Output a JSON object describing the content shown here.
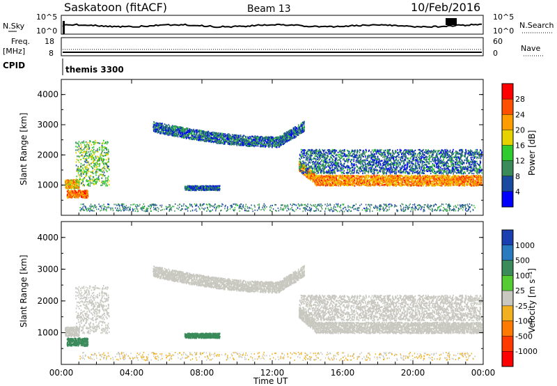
{
  "header": {
    "station": "Saskatoon (fitACF)",
    "beam": "Beam 13",
    "date": "10/Feb/2016"
  },
  "top_panels": {
    "nsky": {
      "label": "N.Sky",
      "ticks": [
        "10^5",
        "10^0"
      ],
      "right_ticks": [
        "10^5",
        "10^0"
      ],
      "right_label": "N.Search"
    },
    "freq": {
      "label_line1": "Freq.",
      "label_line2": "[MHz]",
      "ticks": [
        "18",
        "8"
      ],
      "right_ticks": [
        "60",
        "0"
      ],
      "right_label": "Nave"
    },
    "cpid": {
      "label": "CPID",
      "value": "themis 3300"
    }
  },
  "power_panel": {
    "ylabel": "Slant Range [km]",
    "yticks": [
      "4000",
      "3000",
      "2000",
      "1000"
    ],
    "colorbar_label": "Power [dB]",
    "colorbar_ticks": [
      "28",
      "24",
      "20",
      "16",
      "12",
      "8",
      "4"
    ],
    "colorbar_colors": [
      "#ff0000",
      "#ff5000",
      "#ff9c00",
      "#e6d200",
      "#2ecc2e",
      "#3a8a5a",
      "#1a4aa0",
      "#0000ff"
    ]
  },
  "velocity_panel": {
    "ylabel": "Slant Range [km]",
    "yticks": [
      "4000",
      "3000",
      "2000",
      "1000"
    ],
    "colorbar_label": "Velocity [m s⁻¹]",
    "colorbar_ticks": [
      "1000",
      "500",
      "100",
      "25",
      "-25",
      "-100",
      "-500",
      "-1000"
    ],
    "colorbar_colors": [
      "#1a3fb0",
      "#2a7ac0",
      "#3a8a5a",
      "#55cc33",
      "#c8c8c0",
      "#f0b020",
      "#ff7a00",
      "#ff3a00",
      "#ff0000"
    ]
  },
  "xaxis": {
    "ticks": [
      "00:00",
      "04:00",
      "08:00",
      "12:00",
      "16:00",
      "20:00",
      "00:00"
    ],
    "label": "Time UT"
  },
  "chart_data": {
    "type": "heatmap",
    "title": "Saskatoon (fitACF)",
    "subtitle": "Beam 13",
    "date": "10/Feb/2016",
    "xlabel": "Time UT",
    "ylabel": "Slant Range [km]",
    "x_range_hours": [
      0,
      24
    ],
    "y_range_km": [
      0,
      4500
    ],
    "power_dB_range": [
      0,
      30
    ],
    "velocity_range_ms": [
      -1000,
      1000
    ],
    "scatter_bands": [
      {
        "name": "early_band_a",
        "t_start": 0.2,
        "t_end": 1.0,
        "r_low": 900,
        "r_high": 1200,
        "power_dB": 20
      },
      {
        "name": "early_band_b",
        "t_start": 0.8,
        "t_end": 2.7,
        "r_low": 1000,
        "r_high": 2500,
        "power_dB": 12
      },
      {
        "name": "early_near",
        "t_start": 0.3,
        "t_end": 1.5,
        "r_low": 600,
        "r_high": 850,
        "power_dB": 24,
        "velocity_ms": 100
      },
      {
        "name": "midday_band",
        "t_start": 5.2,
        "t_end": 13.8,
        "r_low": 2300,
        "r_high": 3100,
        "power_dB": 6,
        "velocity_ms": 0
      },
      {
        "name": "afternoon_band",
        "t_start": 13.5,
        "t_end": 23.9,
        "r_low": 950,
        "r_high": 1400,
        "power_dB": 22,
        "velocity_ms": 0
      },
      {
        "name": "afternoon_diffuse",
        "t_start": 13.5,
        "t_end": 23.9,
        "r_low": 1400,
        "r_high": 2200,
        "power_dB": 6,
        "velocity_ms": 0
      },
      {
        "name": "mid_near",
        "t_start": 7.0,
        "t_end": 9.0,
        "r_low": 850,
        "r_high": 1000,
        "power_dB": 5,
        "velocity_ms": 200
      }
    ]
  }
}
